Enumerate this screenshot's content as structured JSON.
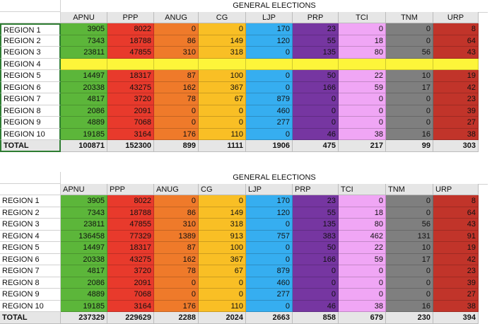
{
  "tables": [
    {
      "title": "GENERAL ELECTIONS",
      "headers": [
        "APNU",
        "PPP",
        "ANUG",
        "CG",
        "LJP",
        "PRP",
        "TCI",
        "TNM",
        "URP"
      ],
      "rows": [
        {
          "label": "REGION 1",
          "values": [
            "3905",
            "8022",
            "0",
            "0",
            "170",
            "23",
            "0",
            "0",
            "8"
          ]
        },
        {
          "label": "REGION 2",
          "values": [
            "7343",
            "18788",
            "86",
            "149",
            "120",
            "55",
            "18",
            "0",
            "64"
          ]
        },
        {
          "label": "REGION 3",
          "values": [
            "23811",
            "47855",
            "310",
            "318",
            "0",
            "135",
            "80",
            "56",
            "43"
          ]
        },
        {
          "label": "REGION 4",
          "values": [
            "",
            "",
            "",
            "",
            "",
            "",
            "",
            "",
            ""
          ]
        },
        {
          "label": "REGION 5",
          "values": [
            "14497",
            "18317",
            "87",
            "100",
            "0",
            "50",
            "22",
            "10",
            "19"
          ]
        },
        {
          "label": "REGION 6",
          "values": [
            "20338",
            "43275",
            "162",
            "367",
            "0",
            "166",
            "59",
            "17",
            "42"
          ]
        },
        {
          "label": "REGION 7",
          "values": [
            "4817",
            "3720",
            "78",
            "67",
            "879",
            "0",
            "0",
            "0",
            "23"
          ]
        },
        {
          "label": "REGION 8",
          "values": [
            "2086",
            "2091",
            "0",
            "0",
            "460",
            "0",
            "0",
            "0",
            "39"
          ]
        },
        {
          "label": "REGION 9",
          "values": [
            "4889",
            "7068",
            "0",
            "0",
            "277",
            "0",
            "0",
            "0",
            "27"
          ]
        },
        {
          "label": "REGION 10",
          "values": [
            "19185",
            "3164",
            "176",
            "110",
            "0",
            "46",
            "38",
            "16",
            "38"
          ]
        }
      ],
      "total": {
        "label": "TOTAL",
        "values": [
          "100871",
          "152300",
          "899",
          "1111",
          "1906",
          "475",
          "217",
          "99",
          "303"
        ]
      }
    },
    {
      "title": "GENERAL ELECTIONS",
      "headers": [
        "APNU",
        "PPP",
        "ANUG",
        "CG",
        "LJP",
        "PRP",
        "TCI",
        "TNM",
        "URP"
      ],
      "rows": [
        {
          "label": "REGION 1",
          "values": [
            "3905",
            "8022",
            "0",
            "0",
            "170",
            "23",
            "0",
            "0",
            "8"
          ]
        },
        {
          "label": "REGION 2",
          "values": [
            "7343",
            "18788",
            "86",
            "149",
            "120",
            "55",
            "18",
            "0",
            "64"
          ]
        },
        {
          "label": "REGION 3",
          "values": [
            "23811",
            "47855",
            "310",
            "318",
            "0",
            "135",
            "80",
            "56",
            "43"
          ]
        },
        {
          "label": "REGION 4",
          "values": [
            "136458",
            "77329",
            "1389",
            "913",
            "757",
            "383",
            "462",
            "131",
            "91"
          ]
        },
        {
          "label": "REGION 5",
          "values": [
            "14497",
            "18317",
            "87",
            "100",
            "0",
            "50",
            "22",
            "10",
            "19"
          ]
        },
        {
          "label": "REGION 6",
          "values": [
            "20338",
            "43275",
            "162",
            "367",
            "0",
            "166",
            "59",
            "17",
            "42"
          ]
        },
        {
          "label": "REGION 7",
          "values": [
            "4817",
            "3720",
            "78",
            "67",
            "879",
            "0",
            "0",
            "0",
            "23"
          ]
        },
        {
          "label": "REGION 8",
          "values": [
            "2086",
            "2091",
            "0",
            "0",
            "460",
            "0",
            "0",
            "0",
            "39"
          ]
        },
        {
          "label": "REGION 9",
          "values": [
            "4889",
            "7068",
            "0",
            "0",
            "277",
            "0",
            "0",
            "0",
            "27"
          ]
        },
        {
          "label": "REGION 10",
          "values": [
            "19185",
            "3164",
            "176",
            "110",
            "0",
            "46",
            "38",
            "16",
            "38"
          ]
        }
      ],
      "total": {
        "label": "TOTAL",
        "values": [
          "237329",
          "229629",
          "2288",
          "2024",
          "2663",
          "858",
          "679",
          "230",
          "394"
        ]
      }
    }
  ],
  "party_colors": {
    "APNU": "#5cb63a",
    "PPP": "#e83a2c",
    "ANUG": "#ef7a2a",
    "CG": "#f9bf25",
    "LJP": "#36aef0",
    "PRP": "#7636a1",
    "TCI": "#f0a6f5",
    "TNM": "#7f7f7f",
    "URP": "#c1342a",
    "missing_row": "#fdf53a"
  }
}
